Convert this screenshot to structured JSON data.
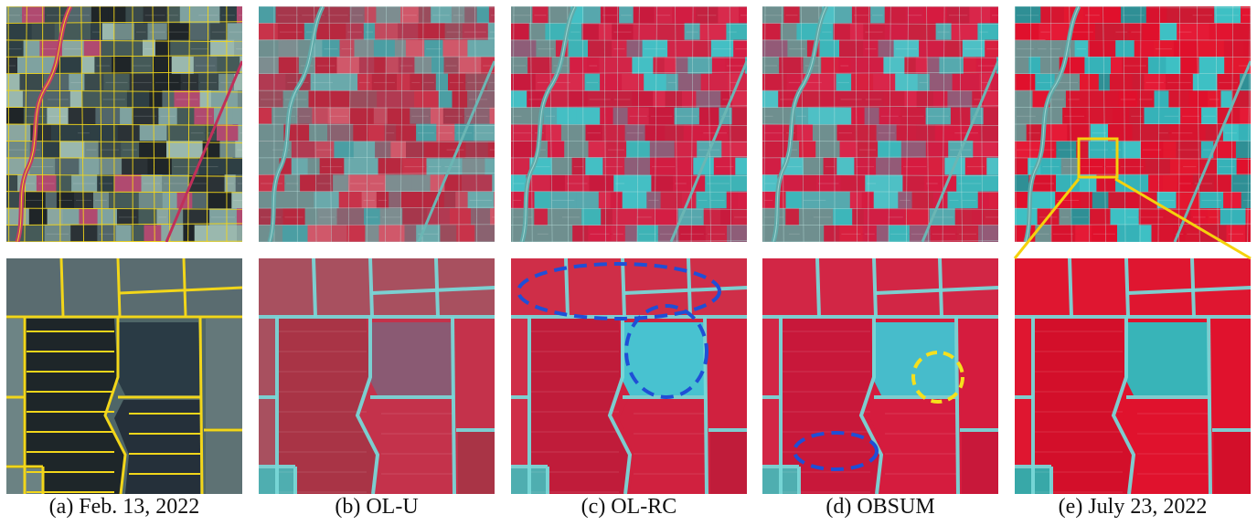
{
  "figure": {
    "panels": [
      {
        "id": "a",
        "caption": "(a) Feb. 13, 2022",
        "scene": "winter-with-parcel-boundaries"
      },
      {
        "id": "b",
        "caption": "(b) OL-U",
        "scene": "fused-prediction"
      },
      {
        "id": "c",
        "caption": "(c) OL-RC",
        "scene": "fused-prediction"
      },
      {
        "id": "d",
        "caption": "(d) OBSUM",
        "scene": "fused-prediction"
      },
      {
        "id": "e",
        "caption": "(e) July 23, 2022",
        "scene": "summer-reference"
      }
    ],
    "colors": {
      "boundary": "#f2d61a",
      "zoom_box": "#f5d20c",
      "error_ellipse": "#1f4fd6",
      "highlight_ellipse": "#f5e01c",
      "vegetation": "#d8163a",
      "water_soil": "#36b9c4"
    }
  }
}
